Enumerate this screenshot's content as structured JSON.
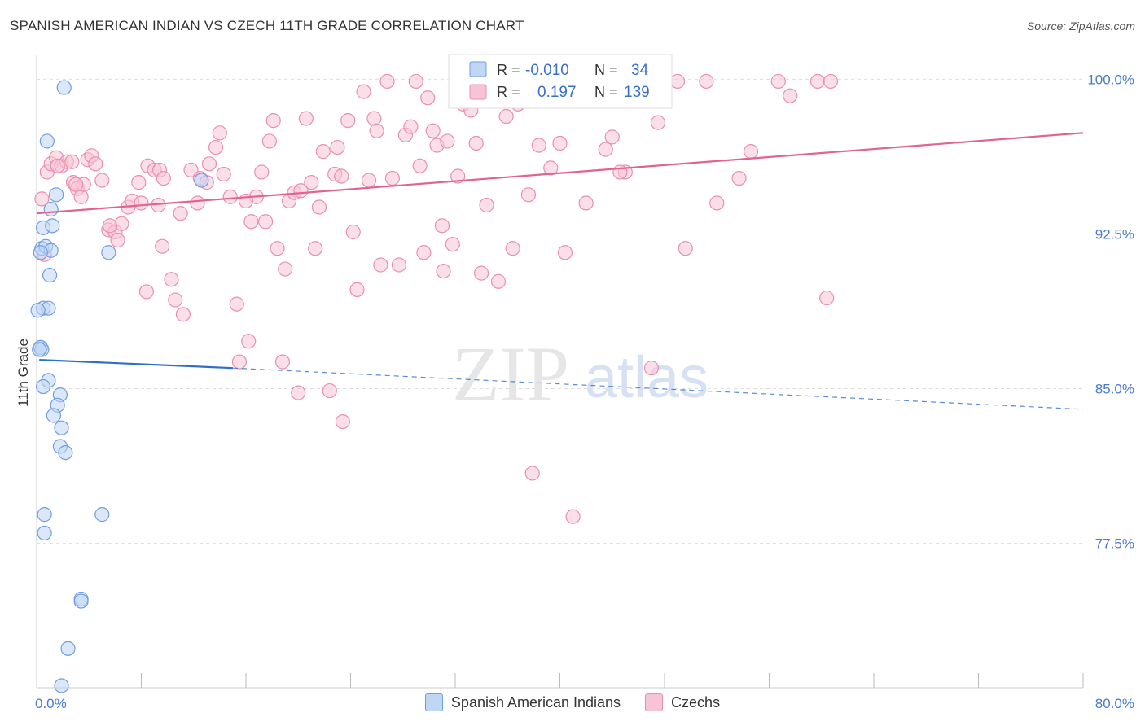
{
  "header": {
    "title": "SPANISH AMERICAN INDIAN VS CZECH 11TH GRADE CORRELATION CHART",
    "source": "Source: ZipAtlas.com"
  },
  "watermark": {
    "part1": "ZIP",
    "part2": "atlas"
  },
  "colors": {
    "blue": "#6f9ee0",
    "blue_fill": "#bfd6f5",
    "blue_line": "#2f6fc9",
    "pink": "#e98fb0",
    "pink_fill": "#f7c4d6",
    "pink_line": "#e0648f",
    "tick_label": "#4a7bd0",
    "grid": "#dddddd"
  },
  "legend": {
    "r_label": "R =",
    "n_label": "N =",
    "blue": {
      "r": "-0.010",
      "n": "34"
    },
    "pink": {
      "r": "0.197",
      "n": "139"
    }
  },
  "chart_data": {
    "type": "scatter",
    "title": "SPANISH AMERICAN INDIAN VS CZECH 11TH GRADE CORRELATION CHART",
    "xlabel": "",
    "ylabel": "11th Grade",
    "xlim": [
      0,
      80
    ],
    "ylim": [
      70.5,
      101.2
    ],
    "x_tick_labels": [
      {
        "value": 0,
        "label": "0.0%"
      },
      {
        "value": 80,
        "label": "80.0%"
      }
    ],
    "y_ticks": [
      {
        "value": 100,
        "label": "100.0%"
      },
      {
        "value": 92.5,
        "label": "92.5%"
      },
      {
        "value": 85,
        "label": "85.0%"
      },
      {
        "value": 77.5,
        "label": "77.5%"
      }
    ],
    "series": [
      {
        "name": "Spanish American Indians",
        "color": "blue",
        "r": -0.01,
        "n": 34,
        "trend_solid": [
          [
            0.2,
            86.4
          ],
          [
            15.0,
            86.0
          ]
        ],
        "trend_dashed": [
          [
            15.0,
            86.0
          ],
          [
            80.0,
            84.0
          ]
        ],
        "points": [
          [
            2.1,
            99.6
          ],
          [
            0.8,
            97.0
          ],
          [
            1.5,
            94.4
          ],
          [
            1.1,
            93.7
          ],
          [
            0.5,
            92.8
          ],
          [
            1.2,
            92.9
          ],
          [
            0.4,
            91.8
          ],
          [
            0.7,
            91.9
          ],
          [
            1.1,
            91.7
          ],
          [
            5.5,
            91.6
          ],
          [
            1.0,
            90.5
          ],
          [
            0.5,
            88.9
          ],
          [
            0.9,
            88.9
          ],
          [
            12.6,
            95.1
          ],
          [
            0.3,
            87.0
          ],
          [
            0.4,
            86.9
          ],
          [
            0.9,
            85.4
          ],
          [
            0.5,
            85.1
          ],
          [
            1.8,
            84.7
          ],
          [
            1.6,
            84.2
          ],
          [
            1.3,
            83.7
          ],
          [
            1.9,
            83.1
          ],
          [
            1.8,
            82.2
          ],
          [
            2.2,
            81.9
          ],
          [
            0.6,
            78.9
          ],
          [
            0.6,
            78.0
          ],
          [
            5.0,
            78.9
          ],
          [
            3.4,
            74.8
          ],
          [
            3.4,
            74.7
          ],
          [
            2.4,
            72.4
          ],
          [
            1.9,
            70.6
          ],
          [
            0.3,
            91.6
          ],
          [
            0.2,
            86.9
          ],
          [
            0.1,
            88.8
          ]
        ]
      },
      {
        "name": "Czechs",
        "color": "pink",
        "r": 0.197,
        "n": 139,
        "trend_solid": [
          [
            0.0,
            93.5
          ],
          [
            80.0,
            97.4
          ]
        ],
        "points": [
          [
            0.4,
            94.2
          ],
          [
            0.6,
            91.5
          ],
          [
            0.8,
            95.5
          ],
          [
            1.1,
            95.9
          ],
          [
            1.5,
            96.2
          ],
          [
            1.9,
            95.8
          ],
          [
            2.3,
            96.0
          ],
          [
            2.8,
            95.0
          ],
          [
            3.1,
            94.7
          ],
          [
            3.4,
            94.3
          ],
          [
            3.6,
            94.9
          ],
          [
            3.9,
            96.1
          ],
          [
            4.2,
            96.3
          ],
          [
            4.5,
            95.9
          ],
          [
            5.0,
            95.1
          ],
          [
            5.5,
            92.7
          ],
          [
            6.0,
            92.6
          ],
          [
            6.2,
            92.2
          ],
          [
            6.5,
            93.0
          ],
          [
            7.0,
            93.8
          ],
          [
            7.3,
            94.1
          ],
          [
            7.8,
            95.0
          ],
          [
            8.5,
            95.8
          ],
          [
            9.0,
            95.6
          ],
          [
            9.4,
            95.6
          ],
          [
            9.7,
            95.2
          ],
          [
            8.4,
            89.7
          ],
          [
            9.6,
            91.9
          ],
          [
            10.3,
            90.3
          ],
          [
            10.6,
            89.3
          ],
          [
            11.2,
            88.6
          ],
          [
            11.8,
            95.6
          ],
          [
            12.3,
            94.0
          ],
          [
            12.5,
            95.2
          ],
          [
            13.2,
            95.9
          ],
          [
            13.7,
            96.7
          ],
          [
            14.0,
            97.4
          ],
          [
            14.3,
            95.4
          ],
          [
            14.8,
            94.3
          ],
          [
            15.3,
            89.1
          ],
          [
            15.5,
            86.3
          ],
          [
            16.2,
            87.3
          ],
          [
            16.4,
            93.1
          ],
          [
            16.8,
            94.3
          ],
          [
            17.2,
            95.5
          ],
          [
            17.5,
            93.1
          ],
          [
            17.8,
            97.0
          ],
          [
            18.1,
            98.0
          ],
          [
            18.4,
            91.8
          ],
          [
            18.8,
            86.3
          ],
          [
            19.0,
            90.8
          ],
          [
            19.3,
            94.1
          ],
          [
            19.7,
            94.5
          ],
          [
            20.0,
            84.8
          ],
          [
            20.6,
            98.1
          ],
          [
            21.0,
            95.0
          ],
          [
            21.3,
            91.8
          ],
          [
            21.6,
            93.8
          ],
          [
            21.9,
            96.5
          ],
          [
            22.4,
            84.9
          ],
          [
            22.8,
            95.4
          ],
          [
            23.0,
            96.7
          ],
          [
            23.4,
            83.4
          ],
          [
            23.8,
            98.0
          ],
          [
            24.2,
            92.6
          ],
          [
            24.5,
            89.8
          ],
          [
            25.0,
            99.4
          ],
          [
            25.4,
            95.1
          ],
          [
            25.8,
            98.1
          ],
          [
            26.3,
            91.0
          ],
          [
            26.8,
            99.9
          ],
          [
            27.2,
            95.2
          ],
          [
            27.7,
            91.0
          ],
          [
            28.2,
            97.3
          ],
          [
            28.6,
            97.7
          ],
          [
            29.0,
            99.9
          ],
          [
            29.3,
            95.8
          ],
          [
            29.6,
            91.6
          ],
          [
            29.9,
            99.1
          ],
          [
            30.3,
            97.5
          ],
          [
            30.6,
            96.8
          ],
          [
            31.1,
            90.7
          ],
          [
            31.4,
            97.0
          ],
          [
            31.8,
            92.0
          ],
          [
            32.2,
            95.3
          ],
          [
            32.6,
            98.8
          ],
          [
            33.2,
            98.5
          ],
          [
            33.6,
            96.9
          ],
          [
            34.0,
            90.6
          ],
          [
            34.4,
            93.9
          ],
          [
            34.9,
            99.8
          ],
          [
            35.3,
            90.2
          ],
          [
            35.9,
            98.2
          ],
          [
            36.4,
            91.8
          ],
          [
            36.8,
            98.8
          ],
          [
            37.6,
            94.4
          ],
          [
            37.9,
            80.9
          ],
          [
            38.4,
            96.8
          ],
          [
            39.3,
            95.7
          ],
          [
            40.0,
            96.9
          ],
          [
            40.4,
            91.6
          ],
          [
            41.0,
            78.8
          ],
          [
            42.0,
            94.0
          ],
          [
            43.0,
            99.8
          ],
          [
            43.5,
            96.6
          ],
          [
            44.0,
            97.2
          ],
          [
            45.0,
            95.5
          ],
          [
            45.5,
            99.8
          ],
          [
            47.0,
            86.0
          ],
          [
            47.5,
            97.9
          ],
          [
            48.0,
            99.2
          ],
          [
            49.0,
            99.9
          ],
          [
            49.6,
            91.8
          ],
          [
            51.2,
            99.9
          ],
          [
            52.0,
            94.0
          ],
          [
            53.7,
            95.2
          ],
          [
            54.6,
            96.5
          ],
          [
            56.7,
            99.9
          ],
          [
            57.6,
            99.2
          ],
          [
            59.7,
            99.9
          ],
          [
            60.4,
            89.4
          ],
          [
            60.7,
            99.9
          ],
          [
            44.6,
            95.5
          ],
          [
            39.0,
            99.8
          ],
          [
            38.5,
            99.1
          ],
          [
            13.0,
            95.0
          ],
          [
            11.0,
            93.5
          ],
          [
            9.3,
            93.9
          ],
          [
            5.6,
            92.9
          ],
          [
            2.7,
            96.0
          ],
          [
            1.6,
            95.8
          ],
          [
            8.0,
            94.0
          ],
          [
            26.0,
            97.5
          ],
          [
            23.3,
            95.3
          ],
          [
            20.2,
            94.6
          ],
          [
            31.0,
            92.9
          ],
          [
            16.0,
            94.1
          ],
          [
            33.5,
            99.0
          ],
          [
            3.0,
            94.9
          ]
        ]
      }
    ]
  },
  "bottom_legend": [
    "Spanish American Indians",
    "Czechs"
  ]
}
